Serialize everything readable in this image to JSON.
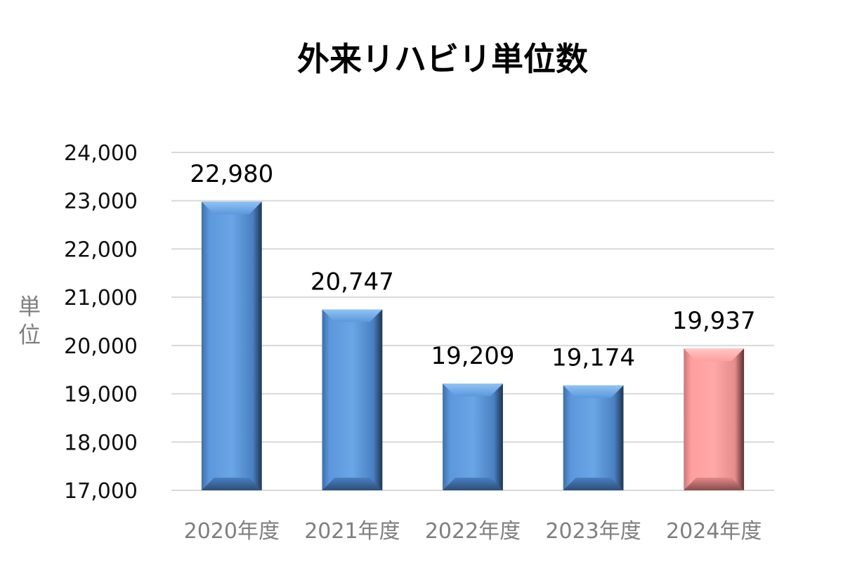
{
  "chart_data": {
    "type": "bar",
    "title": "外来リハビリ単位数",
    "ylabel": "単位",
    "xlabel": "",
    "categories": [
      "2020年度",
      "2021年度",
      "2022年度",
      "2023年度",
      "2024年度"
    ],
    "values": [
      22980,
      20747,
      19209,
      19174,
      19937
    ],
    "data_labels": [
      "22,980",
      "20,747",
      "19,209",
      "19,174",
      "19,937"
    ],
    "ylim": [
      17000,
      24000
    ],
    "yticks": [
      17000,
      18000,
      19000,
      20000,
      21000,
      22000,
      23000,
      24000
    ],
    "ytick_labels": [
      "17,000",
      "18,000",
      "19,000",
      "20,000",
      "21,000",
      "22,000",
      "23,000",
      "24,000"
    ],
    "grid": true,
    "legend": "none",
    "colors": {
      "bar": "#5b9bd5",
      "highlight_bar": "#ff9999",
      "gridline": "#d9d9d9"
    },
    "highlight_index": 4
  }
}
